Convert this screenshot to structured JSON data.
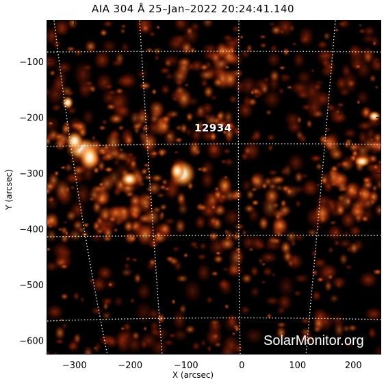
{
  "title": "AIA 304 Å 25–Jan–2022 20:24:41.140",
  "x_axis": {
    "label": "X (arcsec)",
    "ticks": [
      "−300",
      "−200",
      "−100",
      "0",
      "100",
      "200"
    ],
    "tick_values": [
      -300,
      -200,
      -100,
      0,
      100,
      200
    ],
    "range": [
      -350,
      250
    ]
  },
  "y_axis": {
    "label": "Y (arcsec)",
    "ticks": [
      "−100",
      "−200",
      "−300",
      "−400",
      "−500",
      "−600"
    ],
    "tick_values": [
      -100,
      -200,
      -300,
      -400,
      -500,
      -600
    ],
    "range": [
      -625,
      -25
    ]
  },
  "active_region_label": "12934",
  "watermark": "SolarMonitor.org",
  "colors": {
    "background": "#000000",
    "glow_bright": "#ffffff",
    "glow_mid": "#ff8a2a",
    "glow_low": "#7a1a05"
  }
}
